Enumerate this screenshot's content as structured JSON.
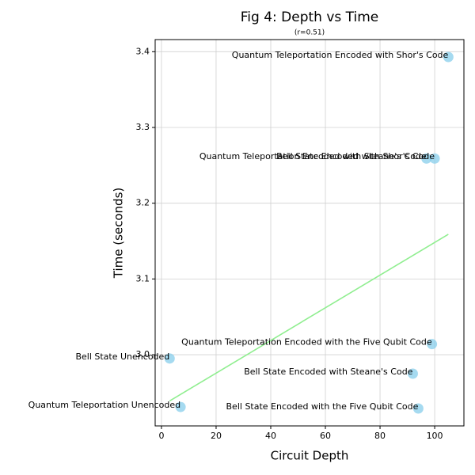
{
  "chart_data": {
    "type": "scatter",
    "title": "Fig 4: Depth vs Time",
    "subtitle": "(r=0.51)",
    "x_label": "Circuit Depth",
    "y_label": "Time (seconds)",
    "x": [
      3,
      7,
      94,
      92,
      99,
      97,
      100,
      105
    ],
    "values": [
      2.995,
      2.931,
      2.929,
      2.975,
      3.014,
      3.259,
      3.259,
      3.393
    ],
    "point_labels": [
      "Bell State Unencoded",
      "Quantum Teleportation Unencoded",
      "Bell State Encoded with the Five Qubit Code",
      "Bell State Encoded with Steane's Code",
      "Quantum Teleportation Encoded with the Five Qubit Code",
      "Quantum Teleportation Encoded with Steane's Code",
      "Bell State Encoded with Shor's Code",
      "Quantum Teleportation Encoded with Shor's Code"
    ],
    "color": "#87ceeb",
    "trendline": {
      "x": [
        3,
        105
      ],
      "values": [
        2.939,
        3.159
      ],
      "color": "#90ee90"
    },
    "xlim": [
      -2.3,
      110.7
    ],
    "ylim": [
      2.906,
      3.416
    ],
    "xticks": [
      0,
      20,
      40,
      60,
      80,
      100
    ],
    "yticks": [
      {
        "value": 3,
        "label": "3.0"
      },
      3.1,
      3.2,
      3.3,
      3.4
    ],
    "grid": true
  }
}
